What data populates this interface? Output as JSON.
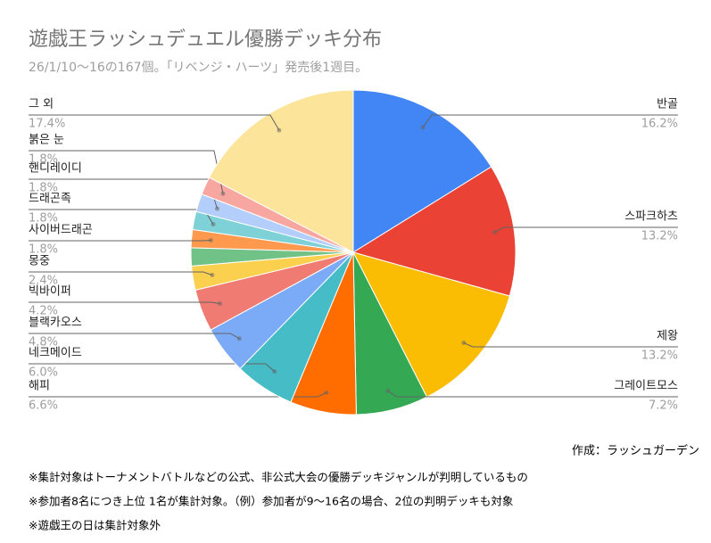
{
  "chart_data": {
    "type": "pie",
    "title": "遊戯王ラッシュデュエル優勝デッキ分布",
    "subtitle": "26/1/10〜16の167個。「リベンジ・ハーツ」発売後1週目。",
    "categories": [
      "반골",
      "스파크하츠",
      "제왕",
      "그레이트모스",
      "해피",
      "네크메이드",
      "블랙카오스",
      "빅바이퍼",
      "몽중",
      null,
      "사이버드래곤",
      "드래곤족",
      "핸디레이디",
      "붉은 눈",
      "그 외"
    ],
    "values": [
      16.2,
      13.2,
      13.2,
      7.2,
      6.6,
      6.0,
      4.8,
      4.2,
      2.4,
      1.8,
      1.8,
      1.8,
      1.8,
      1.8,
      17.4
    ],
    "value_labels": [
      "16.2%",
      "13.2%",
      "13.2%",
      "7.2%",
      "6.6%",
      "6.0%",
      "4.8%",
      "4.2%",
      "2.4%",
      null,
      "1.8%",
      "1.8%",
      "1.8%",
      "1.8%",
      "17.4%"
    ],
    "colors": [
      "#4285f4",
      "#ea4335",
      "#fbbc04",
      "#34a853",
      "#ff6d01",
      "#46bdc6",
      "#7baaf7",
      "#f07b72",
      "#fcd04f",
      "#71c287",
      "#ff994d",
      "#7ed1d7",
      "#b3cefb",
      "#f7a7a0",
      "#fde49b"
    ]
  },
  "footer": {
    "source": "作成：ラッシュガーデン",
    "notes": [
      "※集計対象はトーナメントバトルなどの公式、非公式大会の優勝デッキジャンルが判明しているもの",
      "※参加者8名につき上位 1名が集計対象。（例）参加者が9〜16名の場合、2位の判明デッキも対象",
      "※遊戯王の日は集計対象外"
    ]
  }
}
